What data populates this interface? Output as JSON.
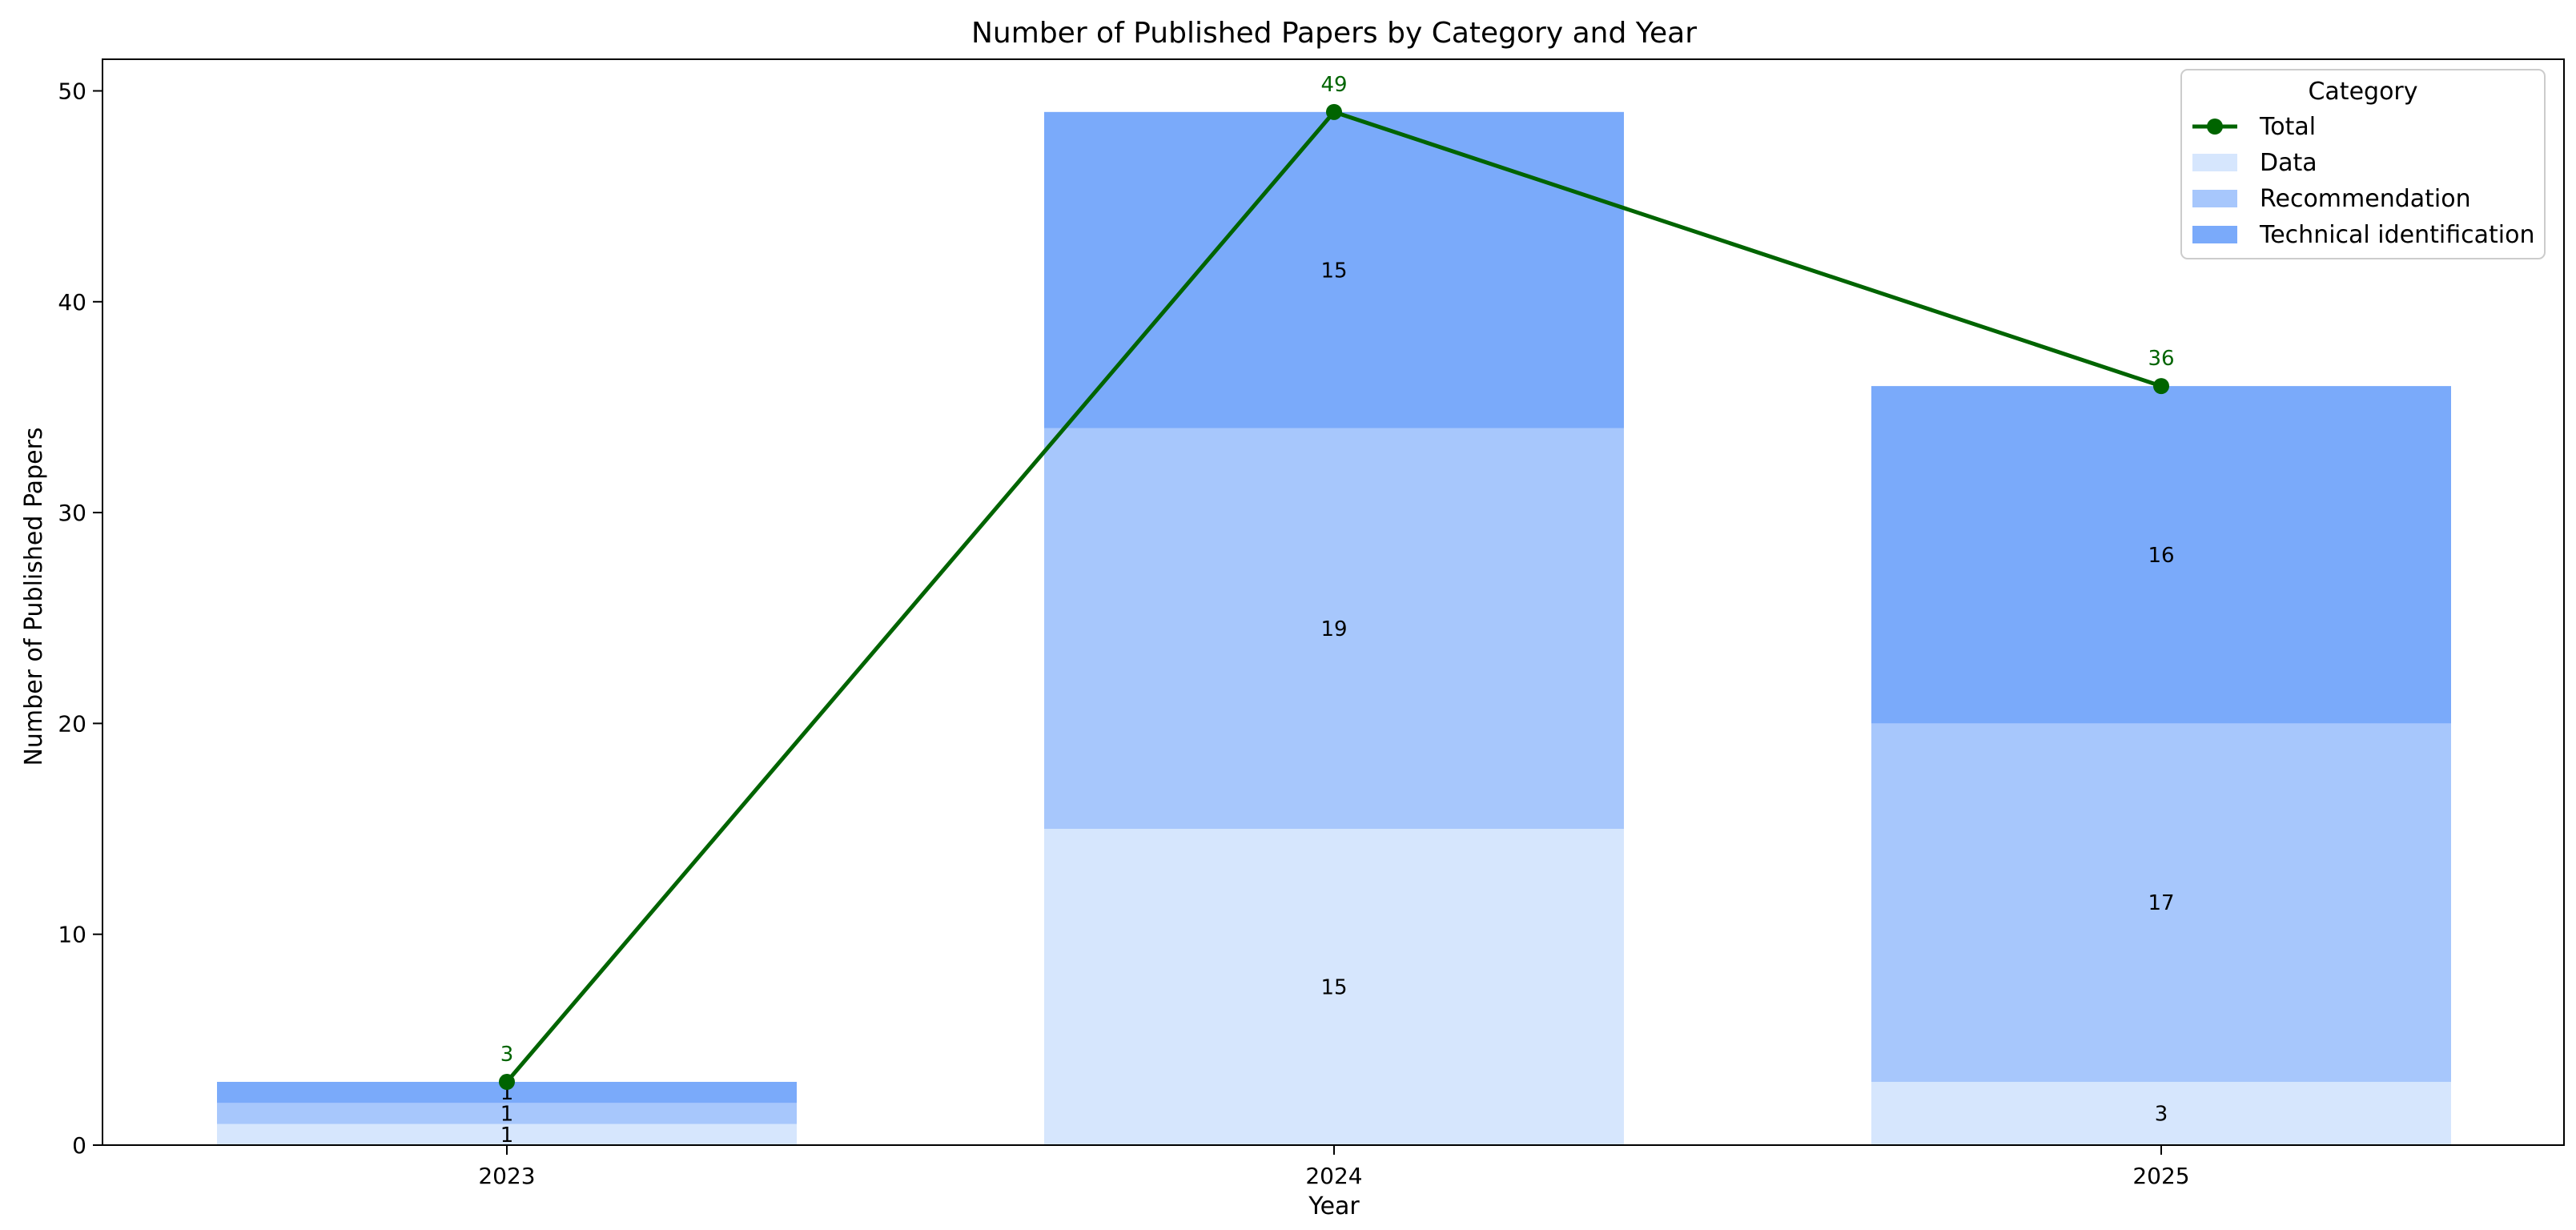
{
  "chart_data": {
    "type": "bar",
    "stacked": true,
    "title": "Number of Published Papers by Category and Year",
    "xlabel": "Year",
    "ylabel": "Number of Published Papers",
    "categories": [
      "2023",
      "2024",
      "2025"
    ],
    "ylim": [
      0,
      51.5
    ],
    "yticks": [
      0,
      10,
      20,
      30,
      40,
      50
    ],
    "grid": false,
    "legend": {
      "title": "Category",
      "placement": "top-right"
    },
    "series": [
      {
        "name": "Data",
        "values": [
          1,
          15,
          3
        ],
        "color": "#d6e6fd"
      },
      {
        "name": "Recommendation",
        "values": [
          1,
          19,
          17
        ],
        "color": "#a7c7fc"
      },
      {
        "name": "Technical identification",
        "values": [
          1,
          15,
          16
        ],
        "color": "#7aaafa"
      }
    ],
    "line": {
      "name": "Total",
      "values": [
        3,
        49,
        36
      ],
      "color": "#006400"
    }
  }
}
